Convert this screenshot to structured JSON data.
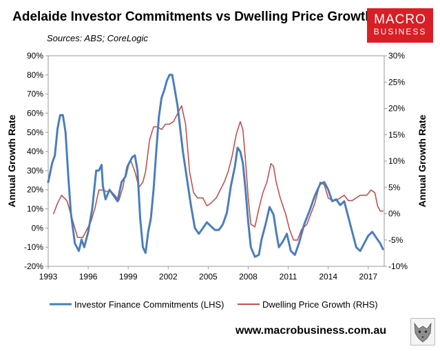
{
  "title": "Adelaide Investor Commitments vs Dwelling Price Growth",
  "subtitle": "Sources: ABS; CoreLogic",
  "logo": {
    "line1": "MACRO",
    "line2": "BUSINESS",
    "color": "#d81f26"
  },
  "website": "www.macrobusiness.com.au",
  "icons": {
    "mascot": "wolf-icon"
  },
  "chart_data": {
    "type": "line",
    "ylabel_left": "Annual Growth Rate",
    "ylabel_right": "Annual Growth Rate",
    "ylim_left": [
      -20,
      90
    ],
    "ylim_right": [
      -10,
      30
    ],
    "xlim": [
      1993,
      2018.2
    ],
    "yticks_left": [
      "-20%",
      "-10%",
      "0%",
      "10%",
      "20%",
      "30%",
      "40%",
      "50%",
      "60%",
      "70%",
      "80%",
      "90%"
    ],
    "yticks_right": [
      "-10%",
      "-5%",
      "0%",
      "5%",
      "10%",
      "15%",
      "20%",
      "25%",
      "30%"
    ],
    "xticks": [
      "1993",
      "1996",
      "1999",
      "2002",
      "2005",
      "2008",
      "2011",
      "2014",
      "2017"
    ],
    "grid": false,
    "legend_position": "bottom",
    "series": [
      {
        "name": "Investor Finance Commitments (LHS)",
        "axis": "left",
        "color": "#4a7ebb",
        "points": [
          [
            1993.0,
            24
          ],
          [
            1993.3,
            34
          ],
          [
            1993.5,
            38
          ],
          [
            1993.7,
            52
          ],
          [
            1993.9,
            59
          ],
          [
            1994.1,
            59
          ],
          [
            1994.3,
            50
          ],
          [
            1994.5,
            28
          ],
          [
            1994.7,
            8
          ],
          [
            1995.0,
            -8
          ],
          [
            1995.3,
            -12
          ],
          [
            1995.5,
            -6
          ],
          [
            1995.7,
            -10
          ],
          [
            1996.0,
            -2
          ],
          [
            1996.3,
            10
          ],
          [
            1996.6,
            30
          ],
          [
            1996.8,
            30
          ],
          [
            1997.0,
            33
          ],
          [
            1997.1,
            22
          ],
          [
            1997.3,
            15
          ],
          [
            1997.6,
            20
          ],
          [
            1997.9,
            17
          ],
          [
            1998.2,
            14
          ],
          [
            1998.5,
            24
          ],
          [
            1998.8,
            27
          ],
          [
            1999.0,
            33
          ],
          [
            1999.3,
            37
          ],
          [
            1999.5,
            38
          ],
          [
            1999.7,
            30
          ],
          [
            1999.9,
            5
          ],
          [
            2000.1,
            -10
          ],
          [
            2000.3,
            -13
          ],
          [
            2000.5,
            -2
          ],
          [
            2000.7,
            5
          ],
          [
            2000.9,
            20
          ],
          [
            2001.1,
            40
          ],
          [
            2001.3,
            58
          ],
          [
            2001.5,
            68
          ],
          [
            2001.7,
            72
          ],
          [
            2001.9,
            77
          ],
          [
            2002.1,
            80
          ],
          [
            2002.3,
            80
          ],
          [
            2002.5,
            72
          ],
          [
            2002.7,
            64
          ],
          [
            2002.9,
            52
          ],
          [
            2003.1,
            40
          ],
          [
            2003.4,
            26
          ],
          [
            2003.7,
            12
          ],
          [
            2004.0,
            0
          ],
          [
            2004.3,
            -3
          ],
          [
            2004.7,
            1
          ],
          [
            2004.9,
            3
          ],
          [
            2005.2,
            1
          ],
          [
            2005.5,
            -1
          ],
          [
            2005.8,
            -1
          ],
          [
            2006.1,
            2
          ],
          [
            2006.4,
            8
          ],
          [
            2006.7,
            22
          ],
          [
            2007.0,
            32
          ],
          [
            2007.2,
            42
          ],
          [
            2007.4,
            40
          ],
          [
            2007.6,
            34
          ],
          [
            2007.8,
            20
          ],
          [
            2008.0,
            3
          ],
          [
            2008.2,
            -10
          ],
          [
            2008.5,
            -15
          ],
          [
            2008.8,
            -14
          ],
          [
            2009.0,
            -6
          ],
          [
            2009.3,
            2
          ],
          [
            2009.6,
            11
          ],
          [
            2009.9,
            7
          ],
          [
            2010.1,
            -2
          ],
          [
            2010.3,
            -10
          ],
          [
            2010.6,
            -7
          ],
          [
            2010.9,
            -3
          ],
          [
            2011.2,
            -12
          ],
          [
            2011.5,
            -14
          ],
          [
            2011.8,
            -8
          ],
          [
            2012.2,
            2
          ],
          [
            2012.6,
            9
          ],
          [
            2013.0,
            17
          ],
          [
            2013.4,
            23
          ],
          [
            2013.7,
            24
          ],
          [
            2014.0,
            20
          ],
          [
            2014.3,
            14
          ],
          [
            2014.6,
            15
          ],
          [
            2014.9,
            12
          ],
          [
            2015.2,
            14
          ],
          [
            2015.5,
            6
          ],
          [
            2015.8,
            -2
          ],
          [
            2016.1,
            -10
          ],
          [
            2016.4,
            -12
          ],
          [
            2016.7,
            -8
          ],
          [
            2017.0,
            -4
          ],
          [
            2017.3,
            -2
          ],
          [
            2017.6,
            -5
          ],
          [
            2017.9,
            -8
          ],
          [
            2018.1,
            -11
          ]
        ]
      },
      {
        "name": "Dwelling Price Growth (RHS)",
        "axis": "right",
        "color": "#c0504d",
        "points": [
          [
            1993.4,
            0
          ],
          [
            1993.7,
            2
          ],
          [
            1994.0,
            3.5
          ],
          [
            1994.4,
            2.5
          ],
          [
            1994.8,
            -1
          ],
          [
            1995.2,
            -4.5
          ],
          [
            1995.6,
            -4.5
          ],
          [
            1995.9,
            -3
          ],
          [
            1996.2,
            -1.5
          ],
          [
            1996.5,
            1
          ],
          [
            1996.8,
            4.5
          ],
          [
            1997.1,
            4.5
          ],
          [
            1997.4,
            4.2
          ],
          [
            1997.7,
            4.3
          ],
          [
            1998.0,
            3.5
          ],
          [
            1998.3,
            2.5
          ],
          [
            1998.6,
            5
          ],
          [
            1998.9,
            9
          ],
          [
            1999.2,
            10
          ],
          [
            1999.5,
            8
          ],
          [
            1999.8,
            5
          ],
          [
            2000.1,
            6
          ],
          [
            2000.3,
            8
          ],
          [
            2000.6,
            14
          ],
          [
            2000.9,
            16.5
          ],
          [
            2001.2,
            16.5
          ],
          [
            2001.5,
            16
          ],
          [
            2001.8,
            17
          ],
          [
            2002.1,
            17
          ],
          [
            2002.4,
            17.5
          ],
          [
            2002.7,
            19
          ],
          [
            2003.0,
            20.5
          ],
          [
            2003.3,
            17
          ],
          [
            2003.6,
            8
          ],
          [
            2003.9,
            4
          ],
          [
            2004.2,
            3
          ],
          [
            2004.6,
            3
          ],
          [
            2004.9,
            1.5
          ],
          [
            2005.2,
            2
          ],
          [
            2005.6,
            3
          ],
          [
            2005.9,
            4.5
          ],
          [
            2006.2,
            6
          ],
          [
            2006.5,
            8
          ],
          [
            2006.8,
            11
          ],
          [
            2007.1,
            15
          ],
          [
            2007.4,
            17.5
          ],
          [
            2007.6,
            16
          ],
          [
            2007.8,
            10
          ],
          [
            2008.0,
            3
          ],
          [
            2008.2,
            -2
          ],
          [
            2008.5,
            -2.5
          ],
          [
            2008.8,
            1
          ],
          [
            2009.1,
            4
          ],
          [
            2009.4,
            6
          ],
          [
            2009.7,
            9.5
          ],
          [
            2009.9,
            9
          ],
          [
            2010.1,
            6
          ],
          [
            2010.4,
            3
          ],
          [
            2010.8,
            0
          ],
          [
            2011.1,
            -3
          ],
          [
            2011.4,
            -5
          ],
          [
            2011.7,
            -5
          ],
          [
            2012.0,
            -3
          ],
          [
            2012.4,
            -2
          ],
          [
            2012.7,
            0
          ],
          [
            2013.0,
            2
          ],
          [
            2013.4,
            6
          ],
          [
            2013.7,
            5.5
          ],
          [
            2014.0,
            3
          ],
          [
            2014.3,
            2.5
          ],
          [
            2014.6,
            2.5
          ],
          [
            2014.9,
            3
          ],
          [
            2015.2,
            3.5
          ],
          [
            2015.5,
            2.5
          ],
          [
            2015.8,
            2.5
          ],
          [
            2016.1,
            3
          ],
          [
            2016.4,
            3.5
          ],
          [
            2016.7,
            3.5
          ],
          [
            2016.9,
            3.5
          ],
          [
            2017.2,
            4.5
          ],
          [
            2017.5,
            4
          ],
          [
            2017.7,
            1.5
          ],
          [
            2017.9,
            0.5
          ],
          [
            2018.1,
            0.5
          ]
        ]
      }
    ]
  }
}
